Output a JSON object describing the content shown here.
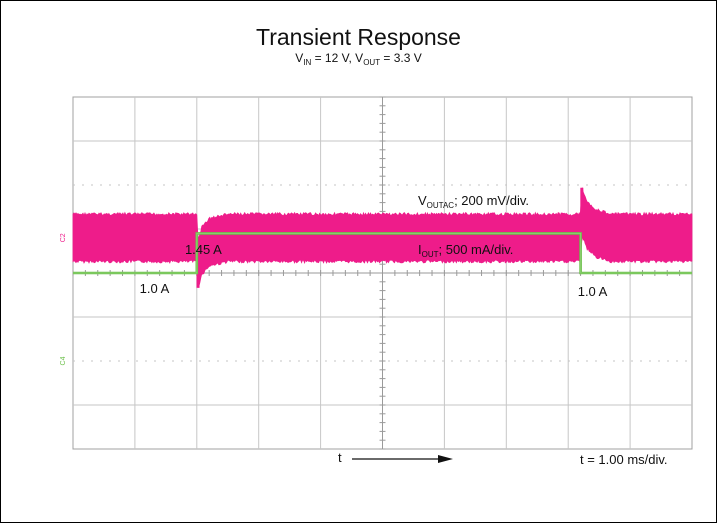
{
  "chart_data": {
    "type": "line",
    "title": "Transient Response",
    "subtitle": {
      "vin_main": "V",
      "vin_sub": "IN",
      "vin_rest": " = 12 V, ",
      "vout_main": "V",
      "vout_sub": "OUT",
      "vout_rest": " = 3.3 V"
    },
    "x_unit": "ms",
    "x_range": [
      0,
      10
    ],
    "time_per_div": "t = 1.00 ms/div.",
    "time_arrow_label": "t",
    "grid": true,
    "divisions": {
      "x": 10,
      "y": 8
    },
    "channels": [
      {
        "id": "C2",
        "marker": "C2",
        "color": "#EE1C8A",
        "label": {
          "main": "V",
          "sub": "OUTAC",
          "rest": "; 200 mV/div."
        },
        "unit": "mV",
        "offset_div": 3.2,
        "scale_per_div": 200,
        "x": [
          0,
          2.0,
          2.02,
          2.08,
          2.2,
          2.5,
          3.0,
          8.2,
          8.22,
          8.3,
          8.45,
          8.7,
          10
        ],
        "y": [
          0,
          0,
          -120,
          -60,
          -20,
          0,
          0,
          0,
          120,
          60,
          20,
          0,
          0
        ],
        "noise_pp": 215
      },
      {
        "id": "C4",
        "marker": "C4",
        "color": "#6CC04A",
        "label": {
          "main": "I",
          "sub": "OUT",
          "rest": "; 500 mA/div."
        },
        "unit": "A",
        "offset_div": 6.0,
        "scale_per_div": 0.5,
        "x": [
          0,
          2.0,
          2.0,
          8.2,
          8.2,
          10
        ],
        "y": [
          1.0,
          1.0,
          1.45,
          1.45,
          1.0,
          1.0
        ],
        "annotations": [
          {
            "text": "1.0 A",
            "x": 1.4,
            "y": 1.0
          },
          {
            "text": "1.45 A",
            "x": 2.6,
            "y": 1.45
          },
          {
            "text": "1.0 A",
            "x": 8.8,
            "y": 1.0
          }
        ]
      }
    ]
  }
}
